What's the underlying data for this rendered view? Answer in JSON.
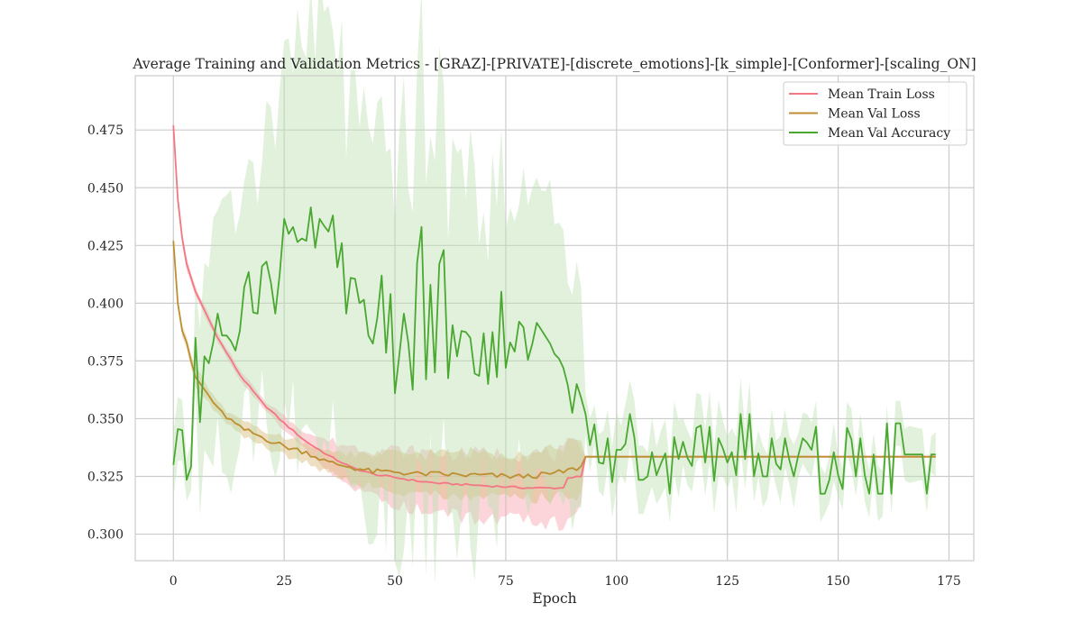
{
  "chart_data": {
    "type": "line",
    "title": "Average Training and Validation Metrics - [GRAZ]-[PRIVATE]-[discrete_emotions]-[k_simple]-[Conformer]-[scaling_ON]",
    "xlabel": "Epoch",
    "ylabel": "",
    "xlim": [
      -8.6,
      180.6
    ],
    "ylim": [
      0.2885,
      0.4985
    ],
    "xticks": [
      0,
      25,
      50,
      75,
      100,
      125,
      150,
      175
    ],
    "xtick_labels": [
      "0",
      "25",
      "50",
      "75",
      "100",
      "125",
      "150",
      "175"
    ],
    "yticks": [
      0.3,
      0.325,
      0.35,
      0.375,
      0.4,
      0.425,
      0.45,
      0.475
    ],
    "ytick_labels": [
      "0.300",
      "0.325",
      "0.350",
      "0.375",
      "0.400",
      "0.425",
      "0.450",
      "0.475"
    ],
    "grid": true,
    "legend_position": "top-right",
    "series": [
      {
        "name": "Mean Train Loss",
        "color": "#f37684",
        "band_color": "#f9a1ae",
        "knots": [
          [
            0,
            0.477
          ],
          [
            1,
            0.445
          ],
          [
            2,
            0.428
          ],
          [
            3,
            0.417
          ],
          [
            5,
            0.405
          ],
          [
            8,
            0.393
          ],
          [
            10,
            0.385
          ],
          [
            15,
            0.369
          ],
          [
            20,
            0.357
          ],
          [
            25,
            0.348
          ],
          [
            30,
            0.34
          ],
          [
            35,
            0.334
          ],
          [
            40,
            0.329
          ],
          [
            45,
            0.326
          ],
          [
            50,
            0.3245
          ],
          [
            55,
            0.323
          ],
          [
            60,
            0.322
          ],
          [
            65,
            0.3215
          ],
          [
            70,
            0.321
          ],
          [
            75,
            0.3205
          ],
          [
            80,
            0.32
          ],
          [
            85,
            0.32
          ],
          [
            88,
            0.32
          ],
          [
            89,
            0.3245
          ],
          [
            92,
            0.3248
          ],
          [
            93,
            0.3335
          ],
          [
            172,
            0.3335
          ]
        ],
        "band_knots": [
          [
            0,
            0.003
          ],
          [
            5,
            0.002
          ],
          [
            20,
            0.002
          ],
          [
            30,
            0.004
          ],
          [
            40,
            0.009
          ],
          [
            50,
            0.012
          ],
          [
            60,
            0.013
          ],
          [
            70,
            0.014
          ],
          [
            80,
            0.015
          ],
          [
            88,
            0.015
          ],
          [
            92,
            0.012
          ],
          [
            93,
            0
          ],
          [
            172,
            0
          ]
        ]
      },
      {
        "name": "Mean Val Loss",
        "color": "#bd8f31",
        "band_color": "#d8b877",
        "knots": [
          [
            0,
            0.427
          ],
          [
            1,
            0.4
          ],
          [
            2,
            0.388
          ],
          [
            3,
            0.383
          ],
          [
            4,
            0.375
          ],
          [
            5,
            0.368
          ],
          [
            8,
            0.36
          ],
          [
            10,
            0.354
          ],
          [
            15,
            0.346
          ],
          [
            20,
            0.342
          ],
          [
            25,
            0.338
          ],
          [
            30,
            0.3355
          ],
          [
            35,
            0.331
          ],
          [
            40,
            0.329
          ],
          [
            45,
            0.327
          ],
          [
            50,
            0.327
          ],
          [
            55,
            0.326
          ],
          [
            60,
            0.326
          ],
          [
            65,
            0.3255
          ],
          [
            70,
            0.3255
          ],
          [
            75,
            0.325
          ],
          [
            80,
            0.325
          ],
          [
            85,
            0.326
          ],
          [
            88,
            0.327
          ],
          [
            92,
            0.329
          ],
          [
            93,
            0.3335
          ],
          [
            172,
            0.3335
          ]
        ],
        "band_knots": [
          [
            0,
            0.002
          ],
          [
            5,
            0.004
          ],
          [
            10,
            0.003
          ],
          [
            20,
            0.003
          ],
          [
            30,
            0.004
          ],
          [
            40,
            0.006
          ],
          [
            50,
            0.008
          ],
          [
            60,
            0.009
          ],
          [
            70,
            0.01
          ],
          [
            80,
            0.01
          ],
          [
            88,
            0.011
          ],
          [
            92,
            0.011
          ],
          [
            93,
            0
          ],
          [
            172,
            0
          ]
        ]
      },
      {
        "name": "Mean Val Accuracy",
        "color": "#4aa831",
        "band_color": "#bde0b1",
        "values": [
          0.33,
          0.3455,
          0.345,
          0.3235,
          0.3292,
          0.385,
          0.3485,
          0.377,
          0.374,
          0.383,
          0.3955,
          0.386,
          0.386,
          0.3835,
          0.3795,
          0.388,
          0.407,
          0.4135,
          0.396,
          0.3955,
          0.416,
          0.418,
          0.409,
          0.3955,
          0.4125,
          0.4365,
          0.43,
          0.433,
          0.4265,
          0.428,
          0.427,
          0.4415,
          0.424,
          0.4365,
          0.4335,
          0.431,
          0.438,
          0.4155,
          0.426,
          0.3955,
          0.411,
          0.4105,
          0.4,
          0.4015,
          0.386,
          0.3825,
          0.3935,
          0.412,
          0.3785,
          0.404,
          0.361,
          0.378,
          0.3955,
          0.383,
          0.3625,
          0.4175,
          0.433,
          0.367,
          0.408,
          0.37,
          0.417,
          0.423,
          0.3675,
          0.3905,
          0.377,
          0.388,
          0.3875,
          0.385,
          0.3695,
          0.3685,
          0.387,
          0.365,
          0.3875,
          0.368,
          0.405,
          0.372,
          0.383,
          0.379,
          0.392,
          0.3895,
          0.3755,
          0.3825,
          0.3915,
          0.3885,
          0.3855,
          0.3825,
          0.378,
          0.376,
          0.372,
          0.3645,
          0.3525,
          0.365,
          0.359,
          0.352,
          0.3385,
          0.3475,
          0.331,
          0.3305,
          0.3415,
          0.3225,
          0.3365,
          0.3365,
          0.339,
          0.352,
          0.342,
          0.3235,
          0.3235,
          0.325,
          0.3355,
          0.3255,
          0.3305,
          0.335,
          0.3175,
          0.342,
          0.3325,
          0.34,
          0.333,
          0.3295,
          0.346,
          0.347,
          0.331,
          0.3465,
          0.323,
          0.3415,
          0.337,
          0.331,
          0.3355,
          0.3255,
          0.352,
          0.3325,
          0.352,
          0.325,
          0.335,
          0.325,
          0.325,
          0.3415,
          0.3305,
          0.328,
          0.3415,
          0.332,
          0.325,
          0.334,
          0.3415,
          0.3395,
          0.3365,
          0.3465,
          0.3175,
          0.3175,
          0.3235,
          0.3355,
          0.3255,
          0.3195,
          0.346,
          0.341,
          0.325,
          0.3415,
          0.3255,
          0.3175,
          0.3345,
          0.3175,
          0.3175,
          0.348,
          0.3175,
          0.348,
          0.348,
          0.3345,
          0.3345,
          0.3345,
          0.3345,
          0.3345,
          0.3175,
          0.3345,
          0.3345,
          0.3345
        ],
        "band_knots": [
          [
            0,
            0.016
          ],
          [
            4,
            0.01
          ],
          [
            6,
            0.04
          ],
          [
            10,
            0.05
          ],
          [
            15,
            0.055
          ],
          [
            20,
            0.06
          ],
          [
            25,
            0.08
          ],
          [
            30,
            0.085
          ],
          [
            35,
            0.088
          ],
          [
            40,
            0.08
          ],
          [
            45,
            0.075
          ],
          [
            50,
            0.082
          ],
          [
            55,
            0.085
          ],
          [
            60,
            0.08
          ],
          [
            65,
            0.075
          ],
          [
            70,
            0.07
          ],
          [
            75,
            0.06
          ],
          [
            80,
            0.065
          ],
          [
            85,
            0.06
          ],
          [
            90,
            0.05
          ],
          [
            92,
            0.045
          ],
          [
            93,
            0.01
          ],
          [
            100,
            0.014
          ],
          [
            110,
            0.013
          ],
          [
            120,
            0.014
          ],
          [
            130,
            0.013
          ],
          [
            140,
            0.012
          ],
          [
            150,
            0.011
          ],
          [
            160,
            0.01
          ],
          [
            172,
            0.01
          ]
        ]
      }
    ]
  }
}
